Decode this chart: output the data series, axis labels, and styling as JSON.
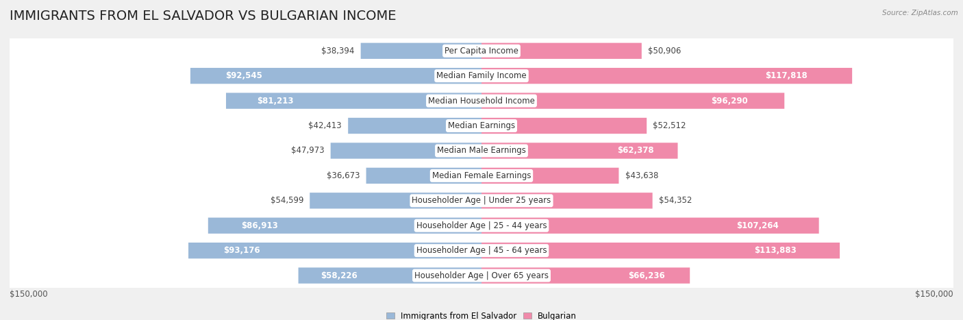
{
  "title": "IMMIGRANTS FROM EL SALVADOR VS BULGARIAN INCOME",
  "source": "Source: ZipAtlas.com",
  "categories": [
    "Per Capita Income",
    "Median Family Income",
    "Median Household Income",
    "Median Earnings",
    "Median Male Earnings",
    "Median Female Earnings",
    "Householder Age | Under 25 years",
    "Householder Age | 25 - 44 years",
    "Householder Age | 45 - 64 years",
    "Householder Age | Over 65 years"
  ],
  "el_salvador_values": [
    38394,
    92545,
    81213,
    42413,
    47973,
    36673,
    54599,
    86913,
    93176,
    58226
  ],
  "bulgarian_values": [
    50906,
    117818,
    96290,
    52512,
    62378,
    43638,
    54352,
    107264,
    113883,
    66236
  ],
  "el_salvador_labels": [
    "$38,394",
    "$92,545",
    "$81,213",
    "$42,413",
    "$47,973",
    "$36,673",
    "$54,599",
    "$86,913",
    "$93,176",
    "$58,226"
  ],
  "bulgarian_labels": [
    "$50,906",
    "$117,818",
    "$96,290",
    "$52,512",
    "$62,378",
    "$43,638",
    "$54,352",
    "$107,264",
    "$113,883",
    "$66,236"
  ],
  "el_salvador_color": "#9ab8d8",
  "bulgarian_color": "#f08aaa",
  "max_value": 150000,
  "axis_label": "$150,000",
  "bg_color": "#f0f0f0",
  "row_bg_even": "#ffffff",
  "row_bg_odd": "#f5f5f5",
  "title_fontsize": 14,
  "label_fontsize": 8.5,
  "category_fontsize": 8.5,
  "white_threshold": 55000
}
